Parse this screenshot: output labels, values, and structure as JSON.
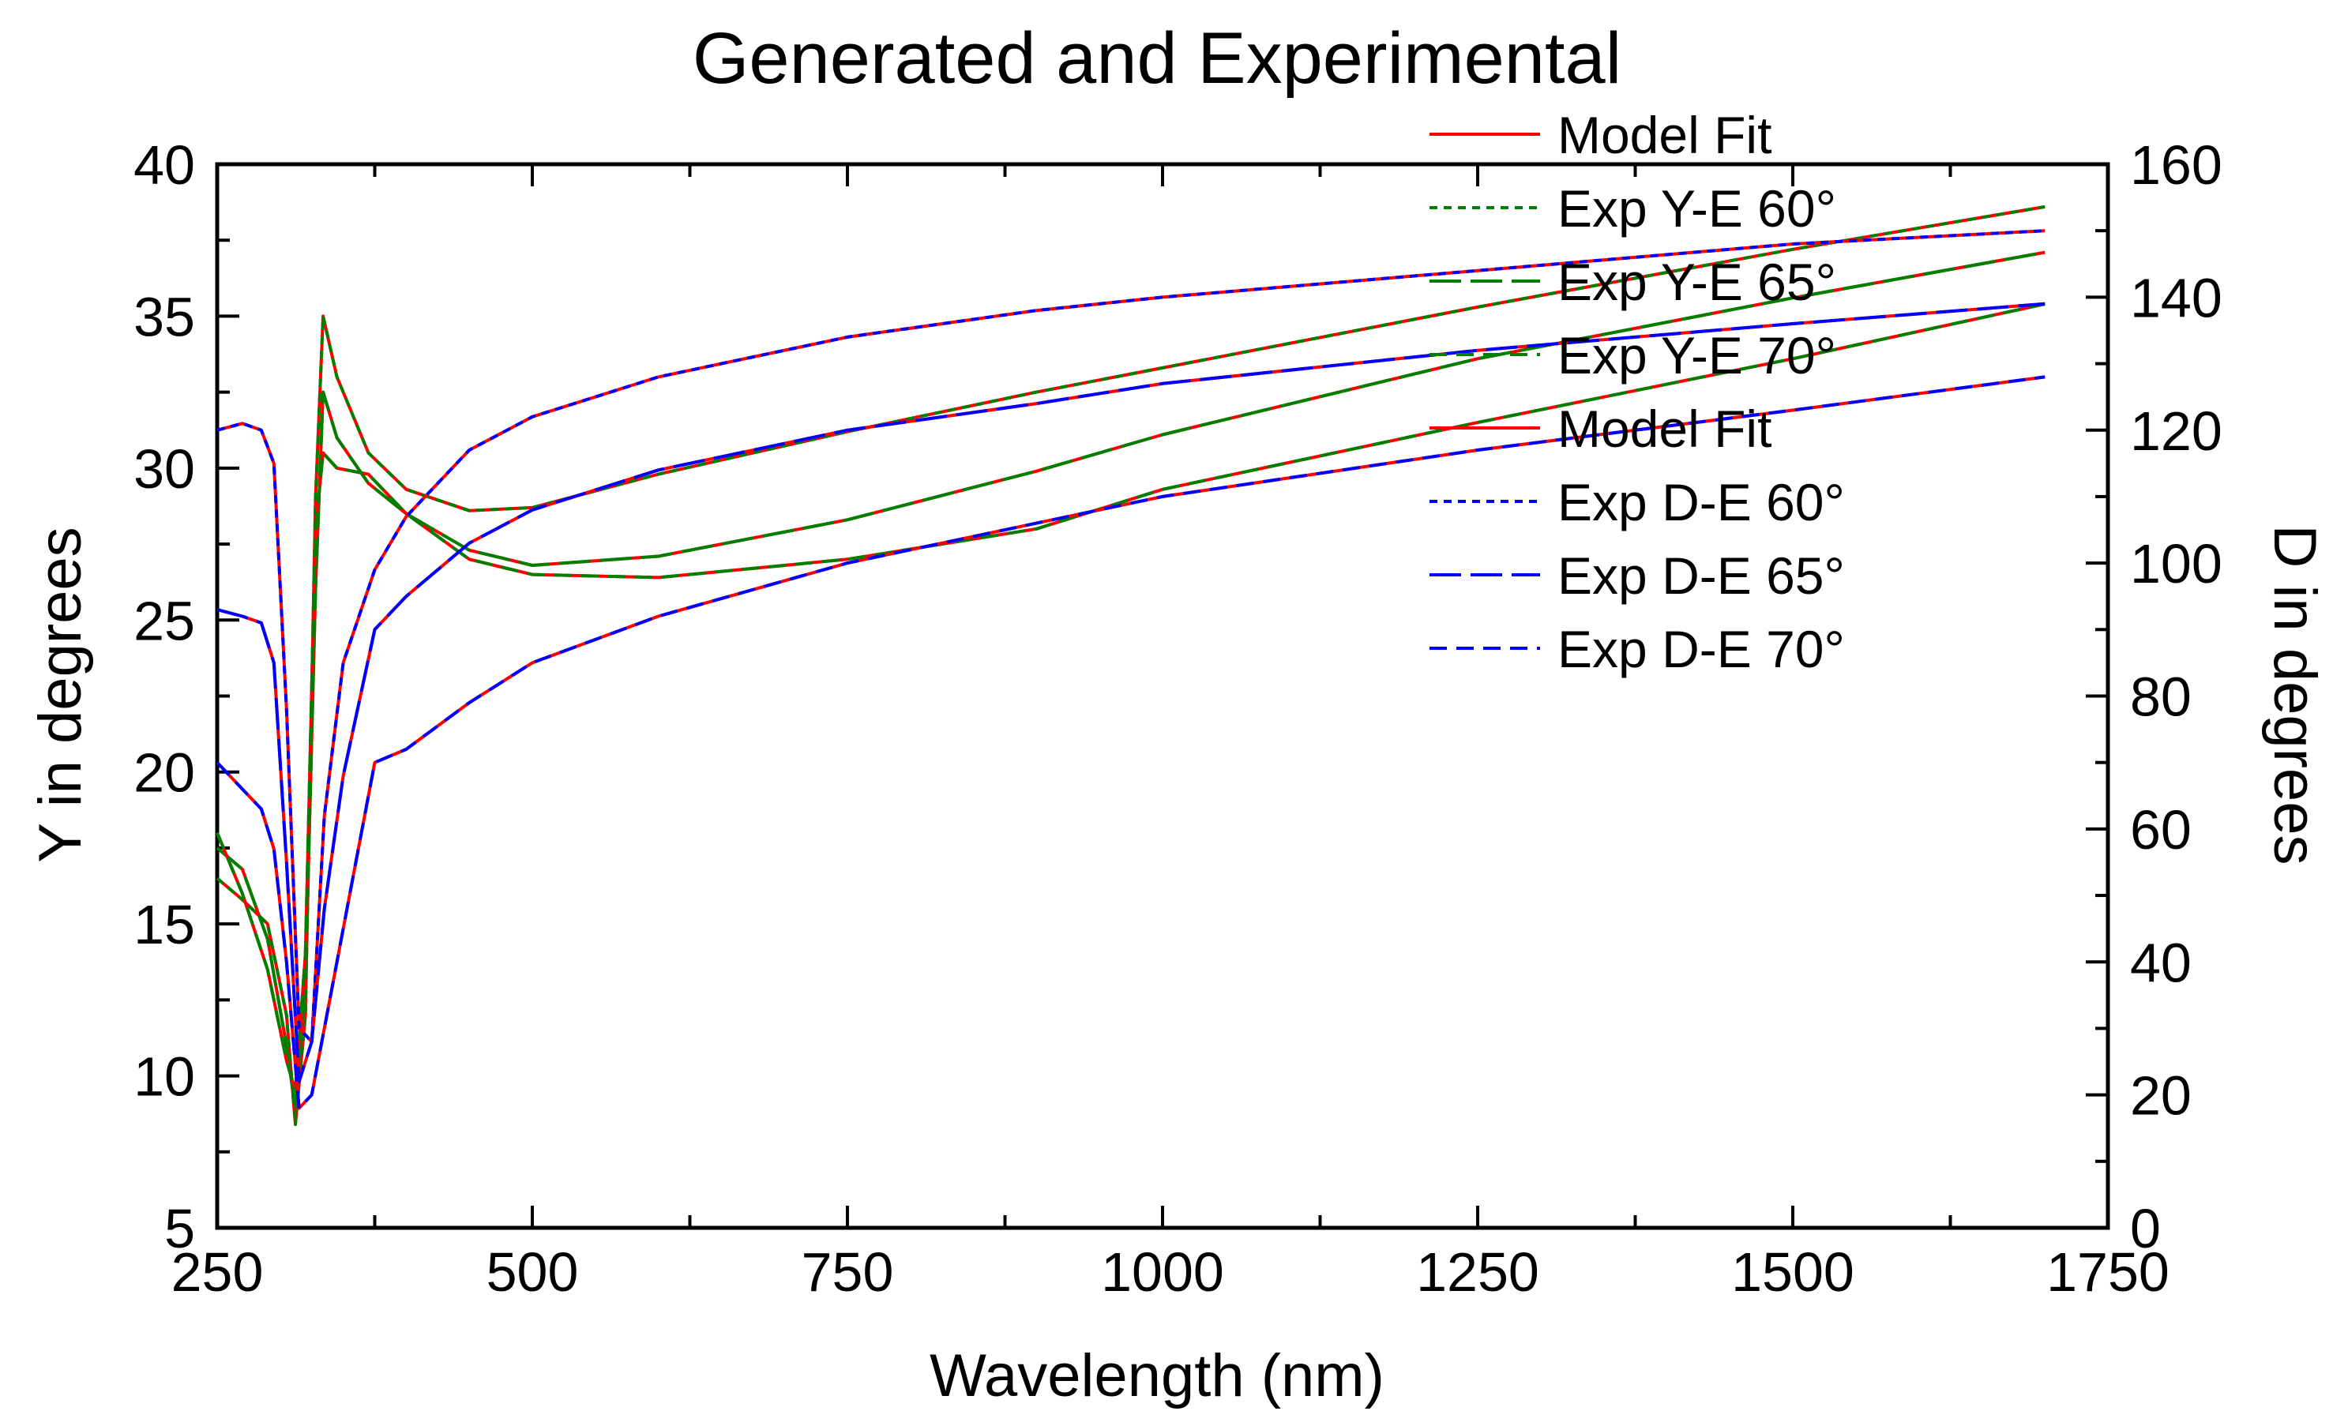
{
  "chart_data": {
    "type": "line",
    "title": "Generated and Experimental",
    "xlabel": "Wavelength (nm)",
    "ylabel": "Y in degrees",
    "y2label": "D in degrees",
    "xlim": [
      250,
      1750
    ],
    "ylim": [
      5,
      40
    ],
    "y2lim": [
      0,
      160
    ],
    "xticks": [
      250,
      500,
      750,
      1000,
      1250,
      1500,
      1750
    ],
    "yticks": [
      5,
      10,
      15,
      20,
      25,
      30,
      35,
      40
    ],
    "y2ticks": [
      0,
      20,
      40,
      60,
      80,
      100,
      120,
      140,
      160
    ],
    "legend_position": "top-right",
    "legend": [
      {
        "label": "Model Fit",
        "color": "#ff0000",
        "dash": "solid"
      },
      {
        "label": "Exp Y-E 60°",
        "color": "#008000",
        "dash": "short"
      },
      {
        "label": "Exp Y-E 65°",
        "color": "#008000",
        "dash": "long"
      },
      {
        "label": "Exp Y-E 70°",
        "color": "#008000",
        "dash": "medium"
      },
      {
        "label": "Model Fit",
        "color": "#ff0000",
        "dash": "solid"
      },
      {
        "label": "Exp D-E 60°",
        "color": "#0000ff",
        "dash": "short"
      },
      {
        "label": "Exp D-E 65°",
        "color": "#0000ff",
        "dash": "long"
      },
      {
        "label": "Exp D-E 70°",
        "color": "#0000ff",
        "dash": "medium"
      }
    ],
    "series": [
      {
        "name": "Exp Y-E 60°",
        "axis": "left",
        "color": "#008000",
        "x": [
          250,
          270,
          290,
          305,
          312,
          320,
          328,
          334,
          345,
          370,
          400,
          450,
          500,
          600,
          750,
          900,
          1000,
          1250,
          1500,
          1700
        ],
        "y": [
          16.5,
          15.8,
          15.0,
          12.0,
          8.4,
          12.0,
          29.0,
          35.0,
          33.0,
          30.5,
          29.3,
          28.6,
          28.7,
          29.8,
          31.2,
          32.5,
          33.3,
          35.3,
          37.2,
          38.6
        ]
      },
      {
        "name": "Exp Y-E 65°",
        "axis": "left",
        "color": "#008000",
        "x": [
          250,
          270,
          290,
          305,
          312,
          320,
          328,
          334,
          345,
          370,
          400,
          450,
          500,
          600,
          750,
          900,
          1000,
          1250,
          1500,
          1700
        ],
        "y": [
          17.5,
          16.8,
          14.5,
          11.0,
          8.9,
          13.0,
          26.0,
          32.5,
          31.0,
          29.5,
          28.5,
          27.3,
          26.8,
          27.1,
          28.3,
          29.9,
          31.1,
          33.6,
          35.6,
          37.1
        ]
      },
      {
        "name": "Exp Y-E 70°",
        "axis": "left",
        "color": "#008000",
        "x": [
          250,
          270,
          290,
          305,
          312,
          320,
          328,
          334,
          345,
          370,
          400,
          450,
          500,
          600,
          750,
          900,
          1000,
          1250,
          1500,
          1700
        ],
        "y": [
          18.0,
          16.0,
          13.5,
          10.5,
          9.5,
          14.0,
          28.0,
          30.5,
          30.0,
          29.8,
          28.5,
          27.0,
          26.5,
          26.4,
          27.0,
          28.0,
          29.3,
          31.5,
          33.6,
          35.4
        ]
      },
      {
        "name": "Exp D-E 60°",
        "axis": "right",
        "color": "#0000ff",
        "x": [
          250,
          270,
          285,
          295,
          305,
          315,
          325,
          335,
          350,
          375,
          400,
          450,
          500,
          600,
          750,
          900,
          1000,
          1250,
          1500,
          1700
        ],
        "y": [
          120,
          121,
          120,
          115,
          78,
          30,
          28,
          62,
          85,
          99,
          107,
          117,
          122,
          128,
          134,
          138,
          140,
          144,
          148,
          150
        ]
      },
      {
        "name": "Exp D-E 65°",
        "axis": "right",
        "color": "#0000ff",
        "x": [
          250,
          270,
          285,
          295,
          305,
          315,
          325,
          335,
          350,
          375,
          400,
          450,
          500,
          600,
          750,
          900,
          1000,
          1250,
          1500,
          1700
        ],
        "y": [
          93,
          92,
          91,
          85,
          55,
          22,
          28,
          48,
          68,
          90,
          95,
          103,
          108,
          114,
          120,
          124,
          127,
          132,
          136,
          139
        ]
      },
      {
        "name": "Exp D-E 70°",
        "axis": "right",
        "color": "#0000ff",
        "x": [
          250,
          270,
          285,
          295,
          305,
          315,
          325,
          335,
          350,
          375,
          400,
          450,
          500,
          600,
          750,
          900,
          1000,
          1250,
          1500,
          1700
        ],
        "y": [
          70,
          66,
          63,
          57,
          40,
          18,
          20,
          30,
          45,
          70,
          72,
          79,
          85,
          92,
          100,
          106,
          110,
          117,
          123,
          128
        ]
      }
    ]
  }
}
